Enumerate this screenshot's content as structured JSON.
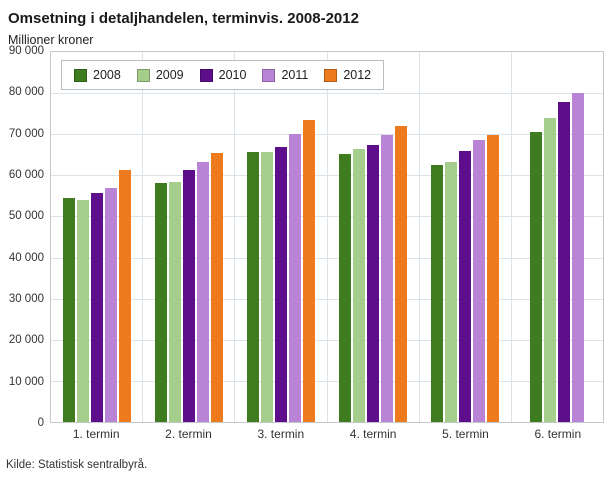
{
  "title": "Omsetning i detaljhandelen, terminvis. 2008-2012",
  "source": "Kilde: Statistisk sentralbyrå.",
  "chart_data": {
    "type": "bar",
    "title": "Omsetning i detaljhandelen, terminvis. 2008-2012",
    "xlabel": "",
    "ylabel": "Millioner kroner",
    "categories": [
      "1. termin",
      "2. termin",
      "3. termin",
      "4. termin",
      "5. termin",
      "6. termin"
    ],
    "series": [
      {
        "name": "2008",
        "color": "#3e7c1f",
        "values": [
          54500,
          58200,
          65600,
          65100,
          62600,
          70500
        ]
      },
      {
        "name": "2009",
        "color": "#a5cd8c",
        "values": [
          54000,
          58500,
          65800,
          66300,
          63200,
          74000
        ]
      },
      {
        "name": "2010",
        "color": "#5c0e8b",
        "values": [
          55800,
          61200,
          66800,
          67500,
          65900,
          77800
        ]
      },
      {
        "name": "2011",
        "color": "#b983d6",
        "values": [
          57000,
          63300,
          70000,
          69800,
          68700,
          80000
        ]
      },
      {
        "name": "2012",
        "color": "#ed7a1c",
        "values": [
          61200,
          65400,
          73400,
          71900,
          69800,
          null
        ]
      }
    ],
    "ylim": [
      0,
      90000
    ],
    "ytick_step": 10000,
    "y_ticks": [
      "90 000",
      "80 000",
      "70 000",
      "60 000",
      "50 000",
      "40 000",
      "30 000",
      "20 000",
      "10 000",
      "0"
    ],
    "grid": true,
    "legend_position": "top-left"
  }
}
